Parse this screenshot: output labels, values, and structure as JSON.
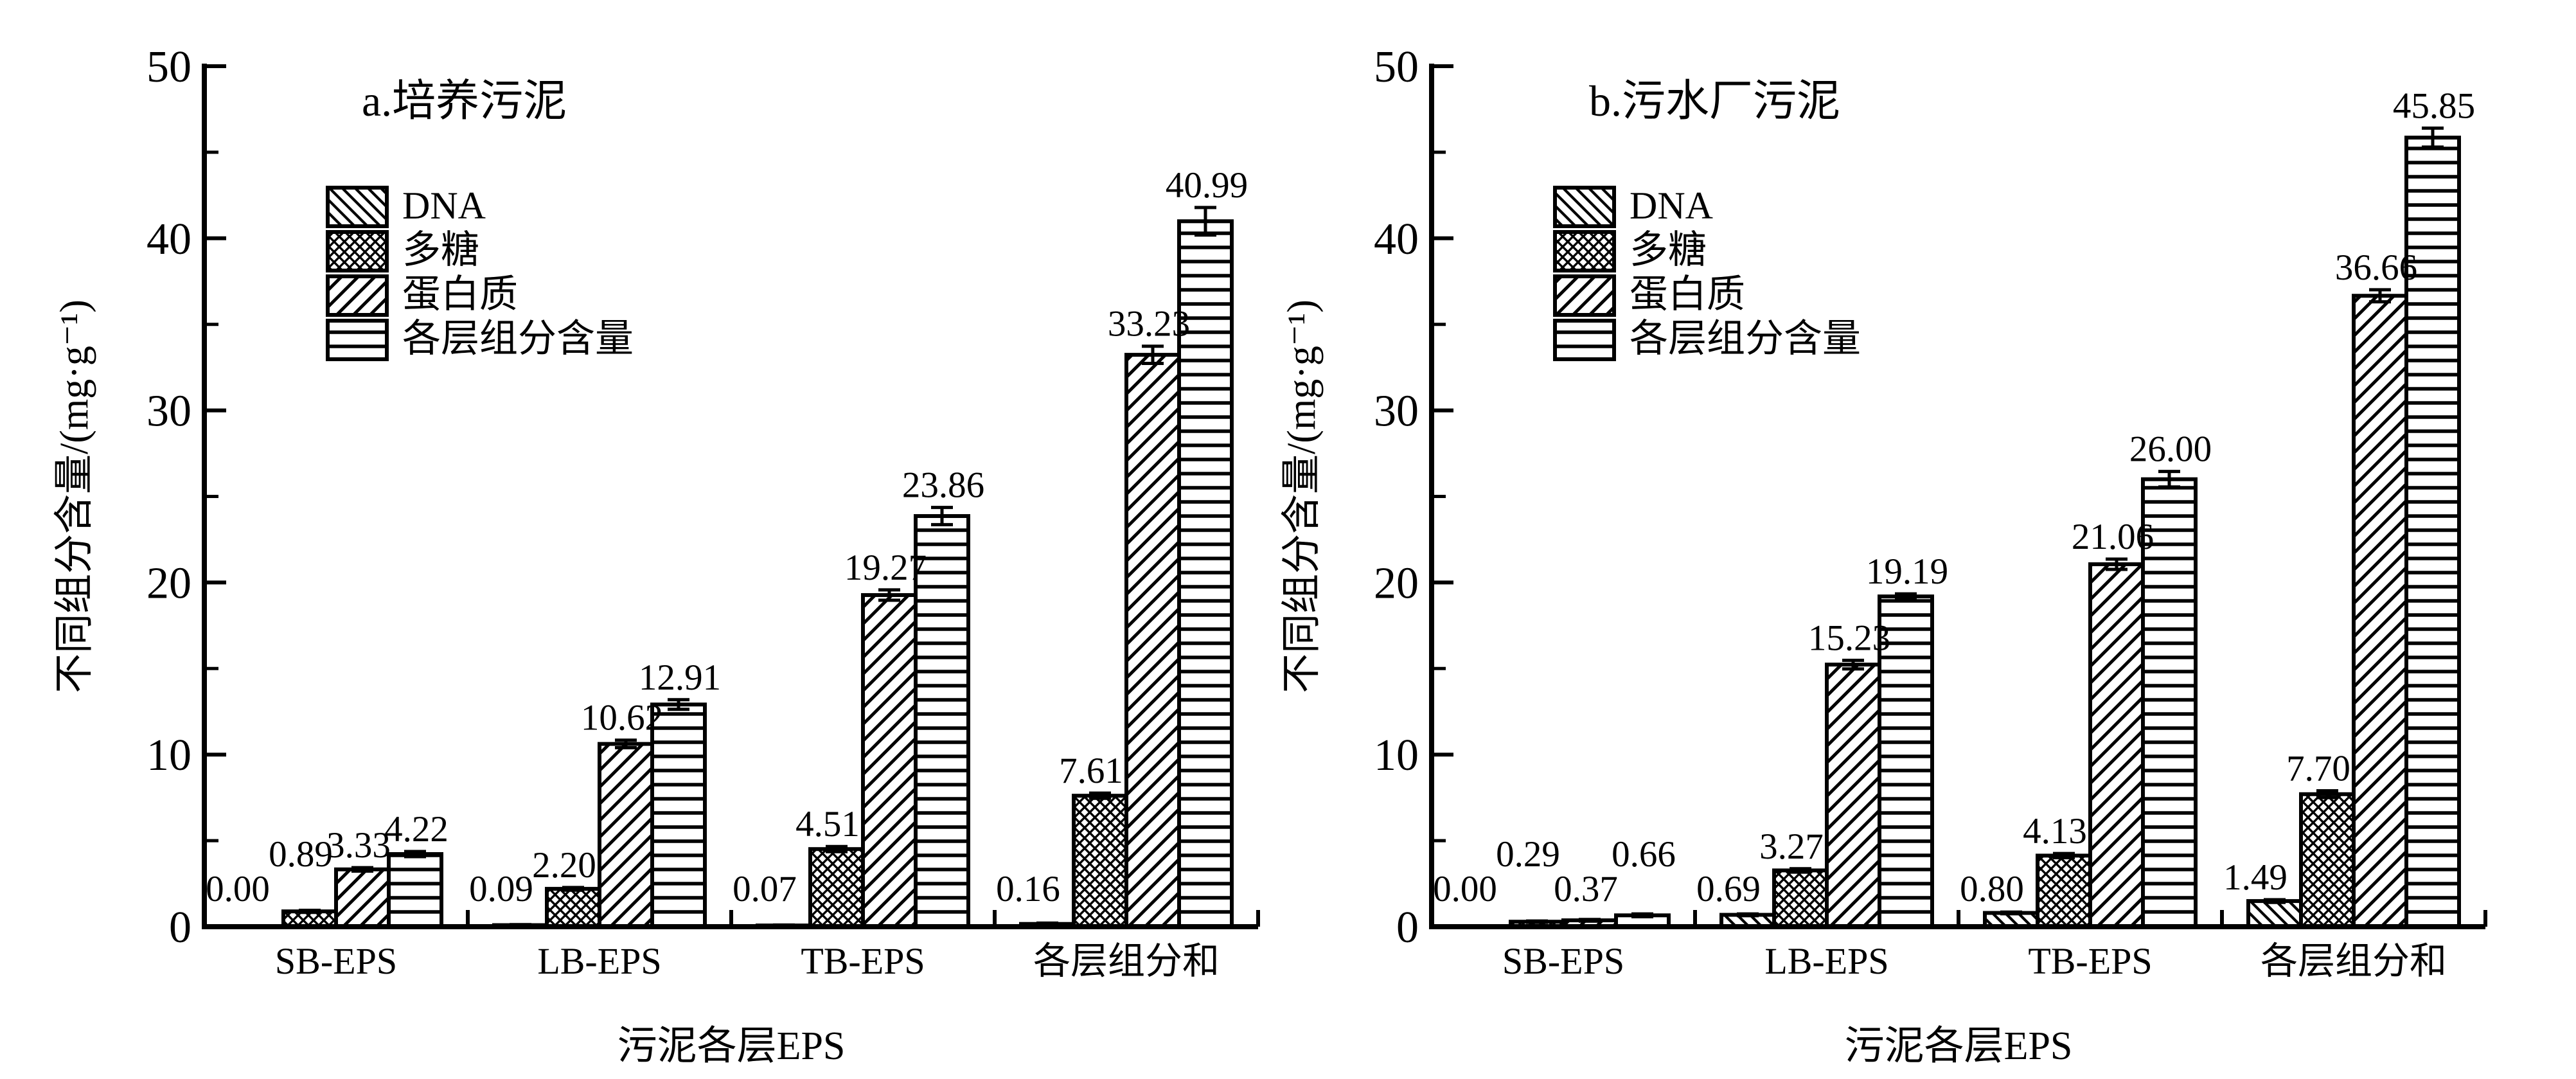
{
  "figure": {
    "background": "#ffffff",
    "ink_color": "#000000",
    "description": "Two grouped bar charts comparing EPS layer component contents of two sludges"
  },
  "chart_data": [
    {
      "type": "bar",
      "title": "a.培养污泥",
      "xlabel": "污泥各层EPS",
      "ylabel": "不同组分含量/(mg·g⁻¹)",
      "ylim": [
        0,
        50
      ],
      "yticks": [
        0,
        10,
        20,
        30,
        40,
        50
      ],
      "minor_ytick_interval": 5,
      "grid": false,
      "legend_position": "upper-left-inside",
      "categories": [
        "SB-EPS",
        "LB-EPS",
        "TB-EPS",
        "各层组分和"
      ],
      "series": [
        {
          "name": "DNA",
          "hatch": "diagonal-back",
          "values": [
            0.0,
            0.09,
            0.07,
            0.16
          ],
          "labels": [
            "0.00",
            "0.09",
            "0.07",
            "0.16"
          ],
          "errors": [
            0,
            0.03,
            0.03,
            0.05
          ]
        },
        {
          "name": "多糖",
          "hatch": "crosshatch",
          "values": [
            0.89,
            2.2,
            4.51,
            7.61
          ],
          "labels": [
            "0.89",
            "2.20",
            "4.51",
            "7.61"
          ],
          "errors": [
            0.06,
            0.08,
            0.15,
            0.15
          ]
        },
        {
          "name": "蛋白质",
          "hatch": "diagonal-forward",
          "values": [
            3.33,
            10.62,
            19.27,
            33.23
          ],
          "labels": [
            "3.33",
            "10.62",
            "19.27",
            "33.23"
          ],
          "errors": [
            0.1,
            0.22,
            0.3,
            0.5
          ]
        },
        {
          "name": "各层组分含量",
          "hatch": "horizontal",
          "values": [
            4.22,
            12.91,
            23.86,
            40.99
          ],
          "labels": [
            "4.22",
            "12.91",
            "23.86",
            "40.99"
          ],
          "errors": [
            0.15,
            0.28,
            0.5,
            0.8
          ]
        }
      ]
    },
    {
      "type": "bar",
      "title": "b.污水厂污泥",
      "xlabel": "污泥各层EPS",
      "ylabel": "不同组分含量/(mg·g⁻¹)",
      "ylim": [
        0,
        50
      ],
      "yticks": [
        0,
        10,
        20,
        30,
        40,
        50
      ],
      "minor_ytick_interval": 5,
      "grid": false,
      "legend_position": "upper-left-inside",
      "categories": [
        "SB-EPS",
        "LB-EPS",
        "TB-EPS",
        "各层组分和"
      ],
      "series": [
        {
          "name": "DNA",
          "hatch": "diagonal-back",
          "values": [
            0.0,
            0.69,
            0.8,
            1.49
          ],
          "labels": [
            "0.00",
            "0.69",
            "0.80",
            "1.49"
          ],
          "errors": [
            0,
            0.05,
            0.05,
            0.08
          ]
        },
        {
          "name": "多糖",
          "hatch": "crosshatch",
          "values": [
            0.29,
            3.27,
            4.13,
            7.7
          ],
          "labels": [
            "0.29",
            "3.27",
            "4.13",
            "7.70"
          ],
          "errors": [
            0.04,
            0.1,
            0.12,
            0.2
          ]
        },
        {
          "name": "蛋白质",
          "hatch": "diagonal-forward",
          "values": [
            0.37,
            15.23,
            21.06,
            36.66
          ],
          "labels": [
            "0.37",
            "15.23",
            "21.06",
            "36.66"
          ],
          "errors": [
            0.05,
            0.25,
            0.3,
            0.35
          ]
        },
        {
          "name": "各层组分含量",
          "hatch": "horizontal",
          "values": [
            0.66,
            19.19,
            26.0,
            45.85
          ],
          "labels": [
            "0.66",
            "19.19",
            "26.00",
            "45.85"
          ],
          "errors": [
            0.08,
            0.15,
            0.45,
            0.55
          ]
        }
      ]
    }
  ]
}
